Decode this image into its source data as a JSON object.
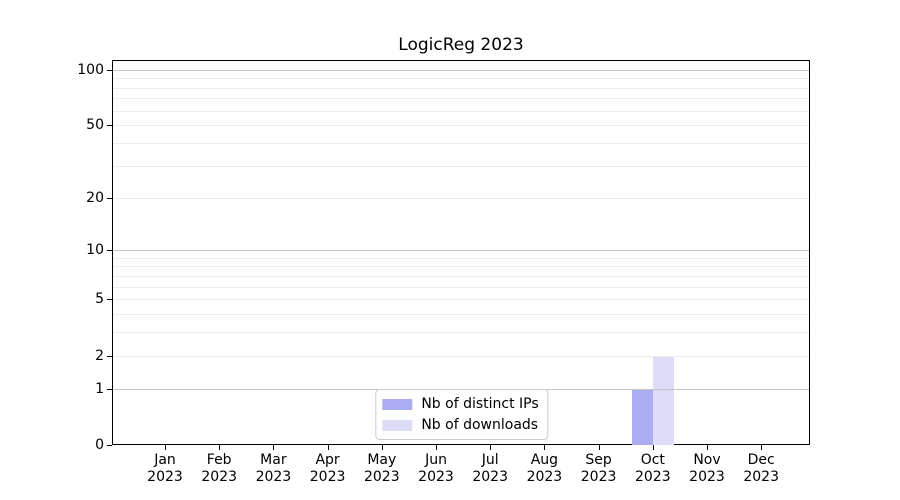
{
  "chart_data": {
    "type": "bar",
    "title": "LogicReg 2023",
    "categories": [
      "Jan",
      "Feb",
      "Mar",
      "Apr",
      "May",
      "Jun",
      "Jul",
      "Aug",
      "Sep",
      "Oct",
      "Nov",
      "Dec"
    ],
    "x_year": "2023",
    "series": [
      {
        "name": "Nb of distinct IPs",
        "color": "#acacf2",
        "values": [
          0,
          0,
          0,
          0,
          0,
          0,
          0,
          0,
          0,
          1,
          0,
          0
        ]
      },
      {
        "name": "Nb of downloads",
        "color": "#ddddf8",
        "values": [
          0,
          0,
          0,
          0,
          0,
          0,
          0,
          0,
          0,
          2,
          0,
          0
        ]
      }
    ],
    "yscale": "log1p",
    "ylim": [
      0,
      113
    ],
    "yticks": [
      0,
      1,
      2,
      5,
      10,
      20,
      50,
      100
    ],
    "grid_major": [
      1,
      10,
      100
    ],
    "grid_minor": [
      2,
      3,
      4,
      5,
      6,
      7,
      8,
      9,
      20,
      30,
      40,
      50,
      60,
      70,
      80,
      90
    ],
    "legend_position": "lower center",
    "colors": {
      "spine": "#000000",
      "grid_major": "#c6c6c6",
      "grid_minor": "#ececec",
      "legend_border": "#cccccc"
    }
  }
}
